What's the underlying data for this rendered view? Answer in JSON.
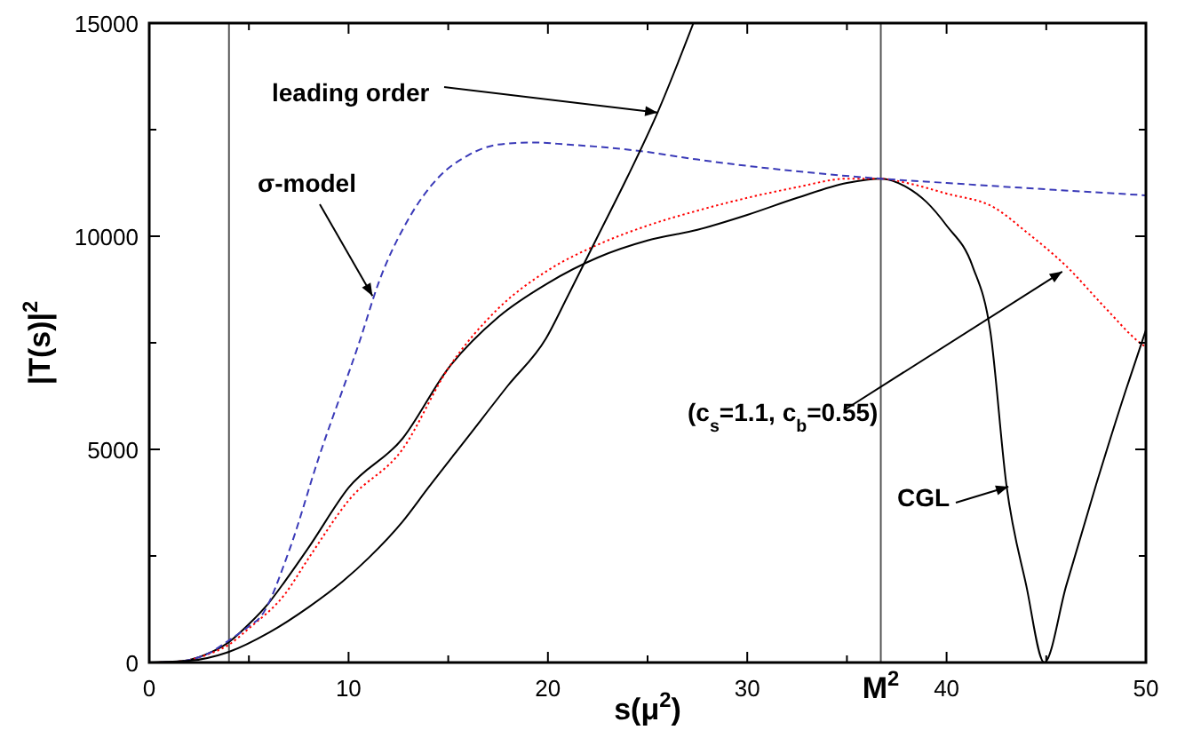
{
  "chart_data": {
    "type": "line",
    "xlabel": "s(μ$^{2}$)",
    "ylabel": "|T(s)|$^{2}$",
    "xlim": [
      0,
      50
    ],
    "ylim": [
      0,
      15000
    ],
    "xticks": [
      0,
      {
        "value": 5,
        "label": null
      },
      10,
      {
        "value": 15,
        "label": null
      },
      20,
      {
        "value": 25,
        "label": null
      },
      30,
      {
        "value": 35,
        "label": null
      },
      40,
      {
        "value": 45,
        "label": null
      },
      50
    ],
    "yticks": [
      0,
      {
        "value": 2500,
        "label": null
      },
      5000,
      {
        "value": 7500,
        "label": null
      },
      10000,
      {
        "value": 12500,
        "label": null
      },
      15000
    ],
    "grid": false,
    "marker": "none",
    "ref_lines": [
      {
        "axis": "x",
        "value": 4,
        "color": "#555555"
      },
      {
        "axis": "x",
        "value": 36.7,
        "color": "#555555",
        "label": "M$^{2}$"
      }
    ],
    "series": [
      {
        "color": "#000000",
        "line_style": "solid",
        "x": [
          0,
          1,
          2,
          3,
          4,
          5,
          6,
          6.8,
          8,
          10,
          12.7,
          15,
          17.5,
          20,
          22.5,
          25,
          27.5,
          30,
          32.5,
          35,
          36.7,
          38,
          39,
          40,
          41.3,
          42.2,
          43,
          44,
          44.9,
          46,
          47.5,
          49,
          50
        ],
        "values": [
          0,
          10,
          60,
          220,
          480,
          900,
          1400,
          1900,
          2700,
          4100,
          5250,
          6900,
          8100,
          8900,
          9500,
          9900,
          10150,
          10500,
          10900,
          11250,
          11350,
          11150,
          10800,
          10250,
          9300,
          7750,
          4170,
          1800,
          0,
          1800,
          4170,
          6400,
          7800
        ]
      },
      {
        "color": "#ff0000",
        "line_style": "dotted",
        "x": [
          0,
          1,
          2,
          3,
          4,
          5,
          6.8,
          8,
          10,
          12.7,
          15,
          17.5,
          20,
          22.5,
          25,
          27.5,
          30,
          32.5,
          35,
          36.7,
          38,
          40,
          42.4,
          44,
          46,
          48,
          49.7,
          50
        ],
        "values": [
          0,
          10,
          60,
          200,
          420,
          800,
          1600,
          2450,
          3800,
          5000,
          6900,
          8300,
          9200,
          9800,
          10250,
          10600,
          10900,
          11150,
          11350,
          11350,
          11250,
          11000,
          10670,
          10100,
          9300,
          8300,
          7500,
          7400
        ]
      },
      {
        "color": "#3a3ab8",
        "line_style": "dashed",
        "x": [
          0,
          1,
          2,
          3,
          4,
          5,
          5.6,
          7,
          8.5,
          10.6,
          11.5,
          13,
          14.5,
          16,
          17.5,
          19.3,
          21,
          22.5,
          24.6,
          27.5,
          30,
          33,
          36.7,
          40,
          45,
          50
        ],
        "values": [
          0,
          10,
          60,
          220,
          520,
          850,
          1080,
          2600,
          4800,
          7600,
          8900,
          10400,
          11375,
          11900,
          12150,
          12200,
          12150,
          12100,
          12000,
          11800,
          11650,
          11500,
          11350,
          11250,
          11100,
          10960
        ]
      },
      {
        "color": "#000000",
        "line_style": "solid",
        "x": [
          0,
          2,
          4,
          6,
          8,
          9.7,
          11,
          12.7,
          14,
          16,
          18,
          19.9,
          21,
          22.5,
          24,
          25.5,
          27.3
        ],
        "values": [
          0,
          40,
          250,
          700,
          1300,
          1900,
          2450,
          3300,
          4100,
          5300,
          6500,
          7600,
          8600,
          10000,
          11400,
          12900,
          15000
        ]
      }
    ],
    "annotations": [
      {
        "text": "leading order",
        "x": 25.5,
        "y": 12900
      },
      {
        "text": "σ-model",
        "x": 11.2,
        "y": 8600
      },
      {
        "text": "(c$_{s}$=1.1, c$_{b}$=0.55)",
        "x": 45.8,
        "y": 9170
      },
      {
        "text": "CGL",
        "x": 43.1,
        "y": 4125
      }
    ]
  }
}
